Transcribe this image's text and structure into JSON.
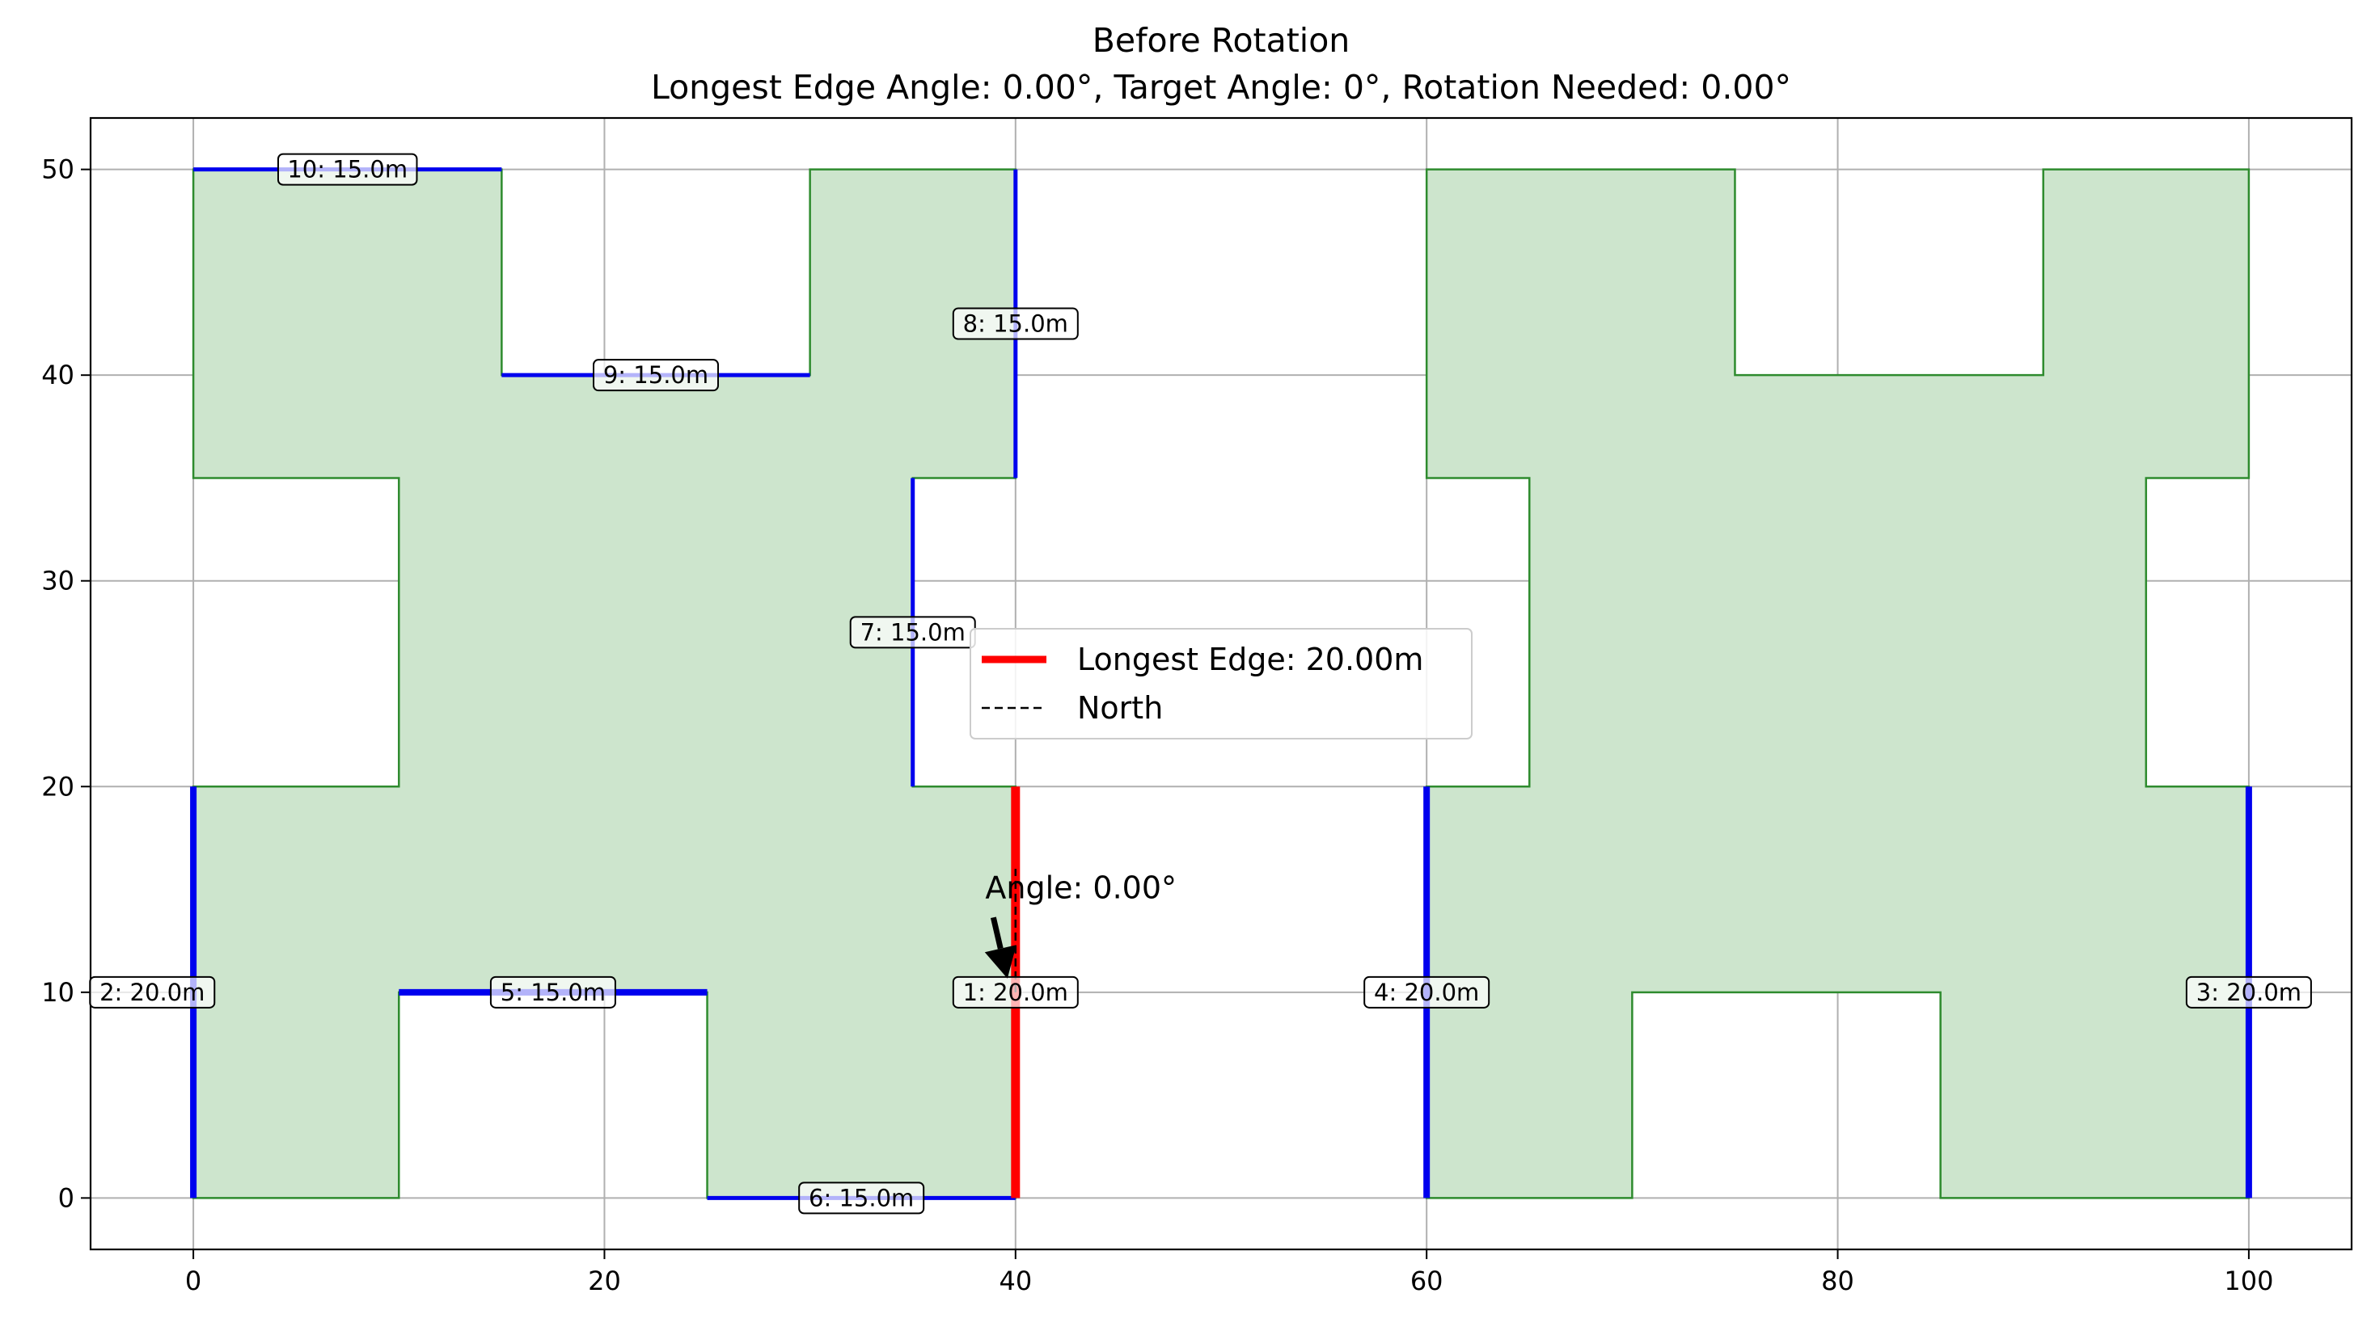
{
  "chart_data": {
    "type": "line",
    "title": "Before Rotation",
    "subtitle": "Longest Edge Angle: 0.00°, Target Angle: 0°, Rotation Needed: 0.00°",
    "xlabel": "",
    "ylabel": "",
    "xlim": [
      -5,
      105
    ],
    "ylim": [
      -2.5,
      52.5
    ],
    "x_ticks": [
      0,
      20,
      40,
      60,
      80,
      100
    ],
    "y_ticks": [
      0,
      10,
      20,
      30,
      40,
      50
    ],
    "grid": true,
    "legend_position": "center",
    "colors": {
      "fill": "#cde5cd",
      "outline": "#2e8b2e",
      "edge": "#0000ee",
      "longest": "#ff0000",
      "grid": "#b0b0b0"
    },
    "polygons": [
      {
        "name": "left-footprint",
        "points": [
          [
            0,
            0
          ],
          [
            10,
            0
          ],
          [
            10,
            10
          ],
          [
            25,
            10
          ],
          [
            25,
            0
          ],
          [
            40,
            0
          ],
          [
            40,
            20
          ],
          [
            35,
            20
          ],
          [
            35,
            35
          ],
          [
            40,
            35
          ],
          [
            40,
            50
          ],
          [
            30,
            50
          ],
          [
            30,
            40
          ],
          [
            15,
            40
          ],
          [
            15,
            50
          ],
          [
            0,
            50
          ],
          [
            0,
            35
          ],
          [
            10,
            35
          ],
          [
            10,
            20
          ],
          [
            0,
            20
          ]
        ]
      },
      {
        "name": "right-footprint",
        "points": [
          [
            60,
            0
          ],
          [
            70,
            0
          ],
          [
            70,
            10
          ],
          [
            85,
            10
          ],
          [
            85,
            0
          ],
          [
            100,
            0
          ],
          [
            100,
            20
          ],
          [
            95,
            20
          ],
          [
            95,
            35
          ],
          [
            100,
            35
          ],
          [
            100,
            50
          ],
          [
            90,
            50
          ],
          [
            90,
            40
          ],
          [
            75,
            40
          ],
          [
            75,
            50
          ],
          [
            60,
            50
          ],
          [
            60,
            35
          ],
          [
            65,
            35
          ],
          [
            65,
            20
          ],
          [
            60,
            20
          ]
        ]
      }
    ],
    "edges": [
      {
        "label": "1: 20.0m",
        "x": [
          40,
          40
        ],
        "y": [
          0,
          20
        ],
        "longest": true,
        "label_at": [
          40,
          10
        ]
      },
      {
        "label": "2: 20.0m",
        "x": [
          0,
          0
        ],
        "y": [
          0,
          20
        ],
        "longest": false,
        "label_at": [
          -2,
          10
        ]
      },
      {
        "label": "3: 20.0m",
        "x": [
          100,
          100
        ],
        "y": [
          0,
          20
        ],
        "longest": false,
        "label_at": [
          100,
          10
        ]
      },
      {
        "label": "4: 20.0m",
        "x": [
          60,
          60
        ],
        "y": [
          0,
          20
        ],
        "longest": false,
        "label_at": [
          60,
          10
        ]
      },
      {
        "label": "5: 15.0m",
        "x": [
          10,
          25
        ],
        "y": [
          10,
          10
        ],
        "longest": false,
        "label_at": [
          17.5,
          10
        ]
      },
      {
        "label": "6: 15.0m",
        "x": [
          25,
          40
        ],
        "y": [
          0,
          0
        ],
        "longest": false,
        "label_at": [
          32.5,
          0
        ]
      },
      {
        "label": "7: 15.0m",
        "x": [
          35,
          35
        ],
        "y": [
          20,
          35
        ],
        "longest": false,
        "label_at": [
          35,
          27.5
        ]
      },
      {
        "label": "8: 15.0m",
        "x": [
          40,
          40
        ],
        "y": [
          35,
          50
        ],
        "longest": false,
        "label_at": [
          40,
          42.5
        ]
      },
      {
        "label": "9: 15.0m",
        "x": [
          15,
          30
        ],
        "y": [
          40,
          40
        ],
        "longest": false,
        "label_at": [
          22.5,
          40
        ]
      },
      {
        "label": "10: 15.0m",
        "x": [
          0,
          15
        ],
        "y": [
          50,
          50
        ],
        "longest": false,
        "label_at": [
          7.5,
          50
        ]
      }
    ],
    "north_line": {
      "x": [
        40,
        40
      ],
      "y": [
        10,
        16
      ]
    },
    "annotation": {
      "text": "Angle: 0.00°",
      "text_at": [
        39,
        14.5
      ],
      "arrow_to": [
        40,
        10.2
      ]
    },
    "legend": [
      {
        "label": "Longest Edge: 20.00m",
        "style": "solid-red"
      },
      {
        "label": "North",
        "style": "dashed-black"
      }
    ]
  }
}
